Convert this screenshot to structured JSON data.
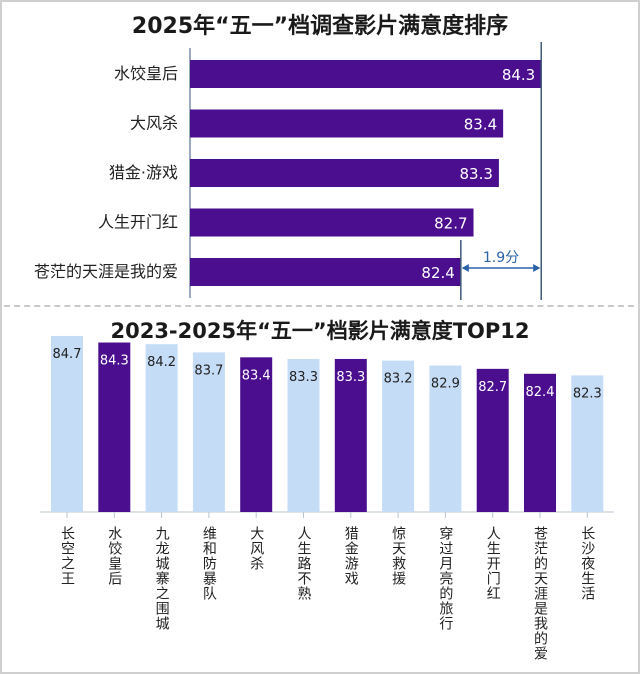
{
  "chart_data": [
    {
      "type": "bar",
      "orientation": "horizontal",
      "title": "2025年“五一”档调查影片满意度排序",
      "categories": [
        "水饺皇后",
        "大风杀",
        "猎金·游戏",
        "人生开门红",
        "苍茫的天涯是我的爱"
      ],
      "values": [
        84.3,
        83.4,
        83.3,
        82.7,
        82.4
      ],
      "value_labels": [
        "84.3",
        "83.4",
        "83.3",
        "82.7",
        "82.4"
      ],
      "xlim": [
        76,
        85.5
      ],
      "annotation": {
        "text": "1.9分",
        "from": 82.4,
        "to": 84.3
      },
      "bar_color": "#4b0e8f",
      "ref_line_color": "#3e5a7a"
    },
    {
      "type": "bar",
      "orientation": "vertical",
      "title": "2023-2025年“五一”档影片满意度TOP12",
      "categories": [
        "长空之王",
        "水饺皇后",
        "九龙城寨之围城",
        "维和防暴队",
        "大风杀",
        "人生路不熟",
        "猎金游戏",
        "惊天救援",
        "穿过月亮的旅行",
        "人生开门红",
        "苍茫的天涯是我的爱",
        "长沙夜生活"
      ],
      "values": [
        84.7,
        84.3,
        84.2,
        83.7,
        83.4,
        83.3,
        83.3,
        83.2,
        82.9,
        82.7,
        82.4,
        82.3
      ],
      "value_labels": [
        "84.7",
        "84.3",
        "84.2",
        "83.7",
        "83.4",
        "83.3",
        "83.3",
        "83.2",
        "82.9",
        "82.7",
        "82.4",
        "82.3"
      ],
      "highlighted": [
        false,
        true,
        false,
        false,
        true,
        false,
        true,
        false,
        false,
        true,
        true,
        false
      ],
      "ylim": [
        74,
        85
      ],
      "highlight_color": "#4b0e8f",
      "normal_color": "#c5dcf7"
    }
  ]
}
